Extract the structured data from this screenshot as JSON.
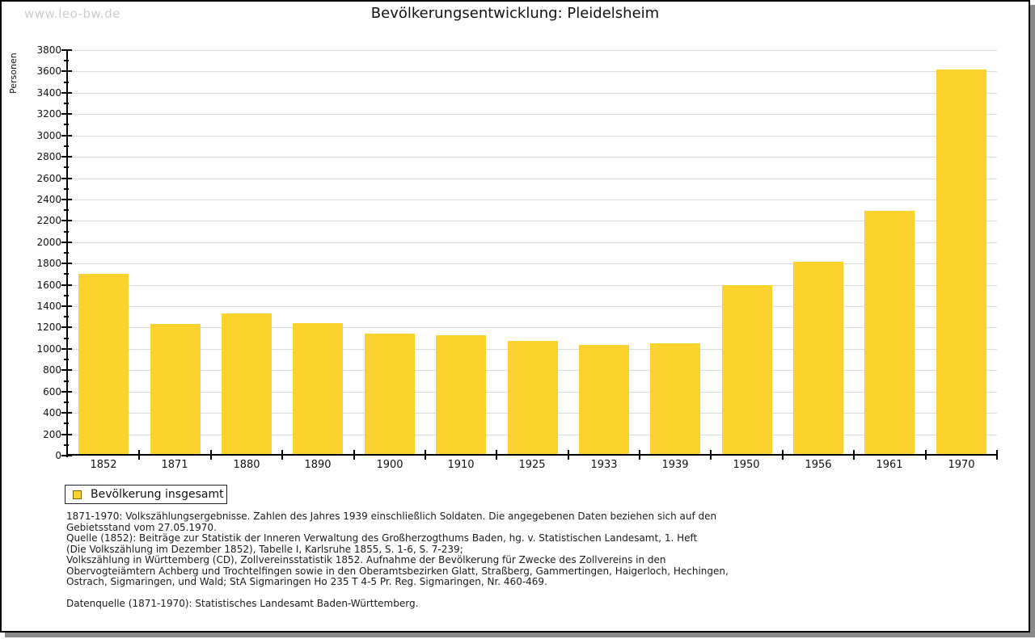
{
  "watermark": "www.leo-bw.de",
  "title": "Bevölkerungsentwicklung: Pleidelsheim",
  "legend": {
    "label": "Bevölkerung insgesamt",
    "swatch_color": "#fcd32e"
  },
  "chart_data": {
    "type": "bar",
    "title": "Bevölkerungsentwicklung: Pleidelsheim",
    "xlabel": "",
    "ylabel": "Personen",
    "categories": [
      "1852",
      "1871",
      "1880",
      "1890",
      "1900",
      "1910",
      "1925",
      "1933",
      "1939",
      "1950",
      "1956",
      "1961",
      "1970"
    ],
    "series": [
      {
        "name": "Bevölkerung insgesamt",
        "values": [
          1700,
          1235,
          1335,
          1245,
          1140,
          1125,
          1075,
          1040,
          1055,
          1600,
          1815,
          2290,
          3615
        ]
      }
    ],
    "ylim": [
      0,
      3800
    ],
    "ytick_step": 200,
    "yminor_step": 100,
    "grid": "horizontal",
    "legend_position": "bottom-left",
    "bar_color": "#fcd32e"
  },
  "footer": {
    "lines": [
      "1871-1970: Volkszählungsergebnisse. Zahlen des Jahres 1939 einschließlich Soldaten. Die angegebenen Daten beziehen sich auf den",
      "Gebietsstand vom 27.05.1970.",
      "Quelle (1852): Beiträge zur Statistik der Inneren Verwaltung des Großherzogthums Baden, hg. v. Statistischen Landesamt, 1. Heft",
      "(Die Volkszählung im Dezember 1852), Tabelle I, Karlsruhe 1855, S. 1-6, S. 7-239;",
      "Volkszählung in Württemberg (CD), Zollvereinsstatistik 1852. Aufnahme der Bevölkerung für Zwecke des Zollvereins in den",
      "Obervogteiämtern Achberg und Trochtelfingen sowie in den Oberamtsbezirken Glatt, Straßberg, Gammertingen, Haigerloch, Hechingen,",
      "Ostrach, Sigmaringen, und Wald; StA Sigmaringen Ho 235 T 4-5 Pr. Reg. Sigmaringen, Nr. 460-469.",
      "",
      "Datenquelle (1871-1970): Statistisches Landesamt Baden-Württemberg."
    ]
  }
}
